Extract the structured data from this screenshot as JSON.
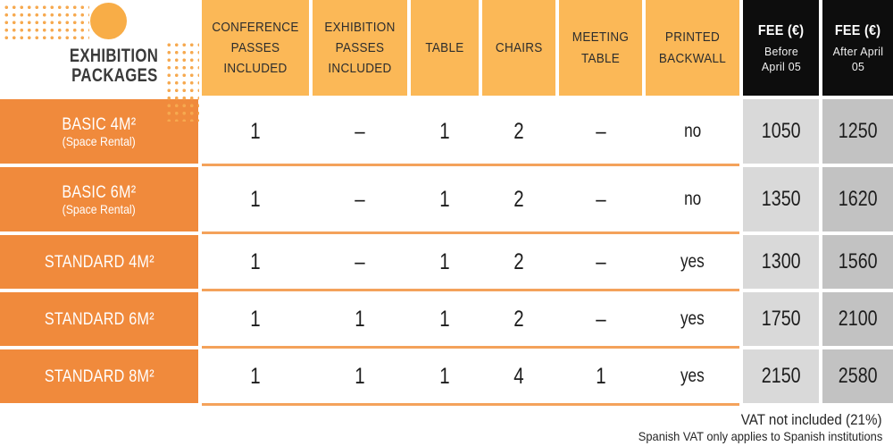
{
  "brand": {
    "line1": "EXHIBITION",
    "line2": "PACKAGES"
  },
  "colors": {
    "header_orange": "#FBB857",
    "row_header_orange": "#F08A3C",
    "separator_orange": "#F4A25B",
    "dot_orange": "#F6A94F",
    "circle_orange": "#F8AD47",
    "fee_header_black": "#0D0D0D",
    "fee_before_gray": "#D9D9D9",
    "fee_after_gray": "#C2C2C2",
    "text_dark": "#1d1d1d",
    "text_white": "#ffffff"
  },
  "chart_data": {
    "type": "table",
    "title": "EXHIBITION PACKAGES",
    "column_headers": [
      {
        "label": "CONFERENCE PASSES INCLUDED"
      },
      {
        "label": "EXHIBITION PASSES INCLUDED"
      },
      {
        "label": "TABLE"
      },
      {
        "label": "CHAIRS"
      },
      {
        "label": "MEETING TABLE"
      },
      {
        "label": "PRINTED BACKWALL"
      },
      {
        "label": "FEE (€)",
        "sub": "Before April 05"
      },
      {
        "label": "FEE (€)",
        "sub": "After April 05"
      }
    ],
    "rows": [
      {
        "name": "BASIC 4M²",
        "note": "(Space Rental)",
        "values": [
          "1",
          "–",
          "1",
          "2",
          "–",
          "no",
          "1050",
          "1250"
        ]
      },
      {
        "name": "BASIC 6M²",
        "note": "(Space Rental)",
        "values": [
          "1",
          "–",
          "1",
          "2",
          "–",
          "no",
          "1350",
          "1620"
        ]
      },
      {
        "name": "STANDARD 4M²",
        "values": [
          "1",
          "–",
          "1",
          "2",
          "–",
          "yes",
          "1300",
          "1560"
        ]
      },
      {
        "name": "STANDARD 6M²",
        "values": [
          "1",
          "1",
          "1",
          "2",
          "–",
          "yes",
          "1750",
          "2100"
        ]
      },
      {
        "name": "STANDARD 8M²",
        "values": [
          "1",
          "1",
          "1",
          "4",
          "1",
          "yes",
          "2150",
          "2580"
        ]
      }
    ],
    "footnotes": [
      "VAT not included (21%)",
      "Spanish VAT only applies to Spanish institutions"
    ]
  }
}
